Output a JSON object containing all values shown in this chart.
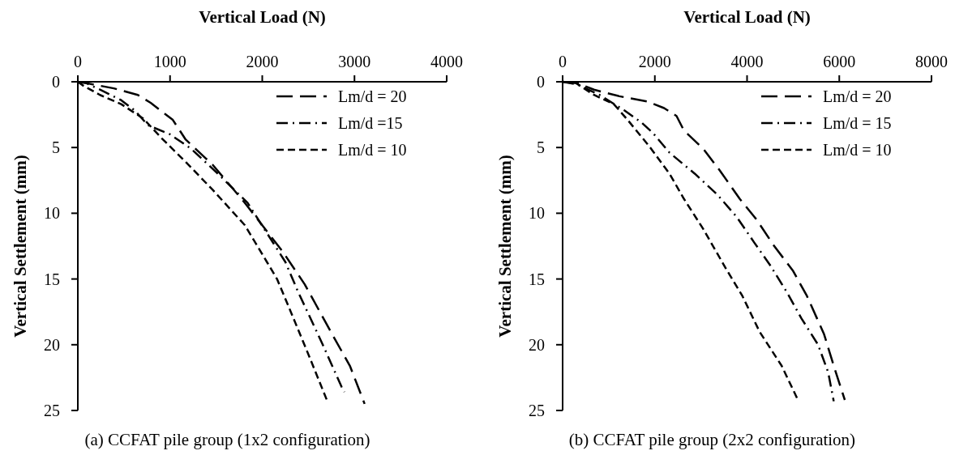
{
  "chart_data": [
    {
      "type": "line",
      "title": "(a)  CCFAT pile group (1x2 configuration)",
      "xlabel": "Vertical Load (N)",
      "ylabel": "Vertical Settlement (mm)",
      "xlim": [
        0,
        4000
      ],
      "xticks": [
        0,
        1000,
        2000,
        3000,
        4000
      ],
      "ylim": [
        25,
        0
      ],
      "yticks": [
        0,
        5,
        10,
        15,
        20,
        25
      ],
      "grid": false,
      "legend": "top right",
      "marker": "none",
      "series": [
        {
          "name": "Lm/d = 20",
          "color": "#000000",
          "line_style": "longdash",
          "x": [
            0,
            90,
            390,
            650,
            790,
            1030,
            1170,
            1460,
            1810,
            2220,
            2460,
            2750,
            2950,
            3110
          ],
          "values": [
            0,
            0.1,
            0.5,
            1.0,
            1.6,
            2.9,
            4.4,
            6.3,
            9.2,
            12.9,
            15.4,
            19.1,
            21.6,
            24.5
          ]
        },
        {
          "name": "Lm/d =15",
          "color": "#000000",
          "line_style": "dashdot",
          "x": [
            0,
            90,
            240,
            470,
            620,
            760,
            1000,
            1230,
            1520,
            1840,
            2250,
            2390,
            2650,
            2860,
            2890
          ],
          "values": [
            0,
            0.1,
            0.6,
            1.4,
            2.2,
            3.3,
            4.0,
            5.1,
            7.0,
            9.2,
            13.7,
            16.0,
            19.9,
            23.2,
            23.6
          ]
        },
        {
          "name": "Lm/d = 10",
          "color": "#000000",
          "line_style": "dashed",
          "x": [
            0,
            60,
            240,
            470,
            710,
            910,
            1170,
            1460,
            1810,
            2050,
            2160,
            2280,
            2510,
            2700
          ],
          "values": [
            0,
            0.3,
            1.0,
            1.7,
            2.8,
            4.3,
            6.1,
            8.2,
            10.9,
            13.7,
            15.0,
            17.0,
            20.9,
            24.2
          ]
        }
      ]
    },
    {
      "type": "line",
      "title": "(b)  CCFAT pile group (2x2 configuration)",
      "xlabel": "Vertical Load (N)",
      "ylabel": "Vertical Settlement (mm)",
      "xlim": [
        0,
        8000
      ],
      "xticks": [
        0,
        2000,
        4000,
        6000,
        8000
      ],
      "ylim": [
        25,
        0
      ],
      "yticks": [
        0,
        5,
        10,
        15,
        20,
        25
      ],
      "grid": false,
      "legend": "top right",
      "marker": "none",
      "series": [
        {
          "name": "Lm/d = 20",
          "color": "#000000",
          "line_style": "longdash",
          "x": [
            0,
            320,
            680,
            1230,
            1840,
            2200,
            2470,
            2630,
            3050,
            3420,
            3840,
            4210,
            4570,
            5000,
            5300,
            5670,
            5880,
            6120
          ],
          "values": [
            0,
            0.1,
            0.6,
            1.1,
            1.5,
            2.0,
            2.6,
            3.7,
            5.1,
            6.8,
            8.9,
            10.5,
            12.4,
            14.4,
            16.3,
            19.2,
            21.6,
            24.2
          ]
        },
        {
          "name": "Lm/d = 15",
          "color": "#000000",
          "line_style": "dashdot",
          "x": [
            0,
            320,
            800,
            1350,
            1710,
            1960,
            2320,
            2870,
            3360,
            3780,
            4150,
            4510,
            4880,
            5180,
            5540,
            5760,
            5880
          ],
          "values": [
            0,
            0.2,
            1.0,
            2.2,
            3.1,
            3.9,
            5.4,
            7.0,
            8.6,
            10.3,
            12.2,
            14.0,
            16.1,
            18.0,
            20.0,
            22.1,
            24.3
          ]
        },
        {
          "name": "Lm/d = 10",
          "color": "#000000",
          "line_style": "dashed",
          "x": [
            0,
            290,
            680,
            1110,
            1410,
            1900,
            2320,
            2630,
            3050,
            3540,
            3900,
            4270,
            4750,
            5090
          ],
          "values": [
            0,
            0.1,
            1.0,
            1.7,
            2.9,
            5.0,
            7.0,
            8.9,
            11.2,
            14.2,
            16.3,
            19.0,
            21.6,
            24.1
          ]
        }
      ]
    }
  ]
}
